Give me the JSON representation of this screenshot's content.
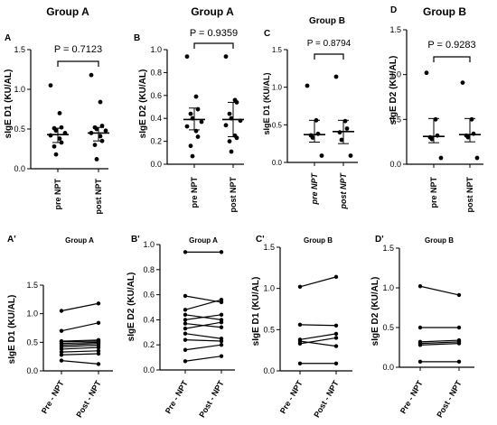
{
  "chart_data": [
    {
      "id": "A",
      "letter": "A",
      "type": "scatter",
      "title": "Group A",
      "xlabel": "",
      "ylabel": "sIgE D1 (KU/AL)",
      "ylim": [
        0,
        1.5
      ],
      "yticks": [
        0.0,
        0.5,
        1.0,
        1.5
      ],
      "tick_labels": [
        "0.0",
        "0.5",
        "1.0",
        "1.5"
      ],
      "categories": [
        "pre NPT",
        "post NPT"
      ],
      "pvalue": "P = 0.7123",
      "series": [
        {
          "values": [
            1.05,
            0.7,
            0.52,
            0.51,
            0.48,
            0.45,
            0.42,
            0.38,
            0.33,
            0.28,
            0.18
          ]
        },
        {
          "values": [
            1.18,
            0.84,
            0.54,
            0.52,
            0.5,
            0.48,
            0.45,
            0.41,
            0.35,
            0.3,
            0.12
          ]
        }
      ],
      "median": [
        0.43,
        0.45
      ],
      "iqr": [
        [
          0.33,
          0.51
        ],
        [
          0.35,
          0.52
        ]
      ]
    },
    {
      "id": "B",
      "letter": "B",
      "type": "scatter",
      "title": "Group A",
      "xlabel": "",
      "ylabel": "sIgE D2 (KU/AL)",
      "ylim": [
        0,
        1.0
      ],
      "yticks": [
        0.0,
        0.2,
        0.4,
        0.6,
        0.8,
        1.0
      ],
      "tick_labels": [
        "0.0",
        "0.2",
        "0.4",
        "0.6",
        "0.8",
        "1.0"
      ],
      "categories": [
        "pre NPT",
        "post NPT"
      ],
      "pvalue": "P = 0.9359",
      "series": [
        {
          "values": [
            0.94,
            0.59,
            0.48,
            0.44,
            0.4,
            0.37,
            0.33,
            0.29,
            0.24,
            0.16,
            0.07
          ]
        },
        {
          "values": [
            0.94,
            0.56,
            0.54,
            0.44,
            0.4,
            0.38,
            0.34,
            0.25,
            0.23,
            0.2,
            0.11
          ]
        }
      ],
      "median": [
        0.39,
        0.39
      ],
      "iqr": [
        [
          0.3,
          0.49
        ],
        [
          0.24,
          0.54
        ]
      ]
    },
    {
      "id": "C",
      "letter": "C",
      "type": "scatter",
      "title": "Group B",
      "xlabel": "",
      "ylabel": "sIgE D1 (KU/AL)",
      "ylim": [
        0,
        1.5
      ],
      "yticks": [
        0.0,
        0.5,
        1.0,
        1.5
      ],
      "tick_labels": [
        "0.0",
        "0.5",
        "1.0",
        "1.5"
      ],
      "categories": [
        "pre NPT",
        "post NPT"
      ],
      "pvalue": "P = 0.8794",
      "series": [
        {
          "values": [
            1.02,
            0.56,
            0.38,
            0.36,
            0.33,
            0.09
          ]
        },
        {
          "values": [
            1.14,
            0.55,
            0.45,
            0.4,
            0.3,
            0.09
          ]
        }
      ],
      "median": [
        0.37,
        0.41
      ],
      "iqr": [
        [
          0.27,
          0.56
        ],
        [
          0.25,
          0.56
        ]
      ]
    },
    {
      "id": "D",
      "letter": "D",
      "type": "scatter",
      "title": "Group B",
      "xlabel": "",
      "ylabel": "sIgE D2 (KU/AL)",
      "ylim": [
        0,
        1.5
      ],
      "yticks": [
        0.0,
        0.5,
        1.0,
        1.5
      ],
      "tick_labels": [
        "0.0",
        "0.5",
        "1.0",
        "1.5"
      ],
      "categories": [
        "pre NPT",
        "post NPT"
      ],
      "pvalue": "P = 0.9283",
      "series": [
        {
          "values": [
            1.02,
            0.5,
            0.32,
            0.3,
            0.28,
            0.07
          ]
        },
        {
          "values": [
            0.91,
            0.5,
            0.34,
            0.32,
            0.3,
            0.07
          ]
        }
      ],
      "median": [
        0.31,
        0.33
      ],
      "iqr": [
        [
          0.24,
          0.51
        ],
        [
          0.25,
          0.51
        ]
      ]
    },
    {
      "id": "A2",
      "letter": "A'",
      "type": "line",
      "title": "Group A",
      "xlabel": "",
      "ylabel": "sIgE D1 (KU/AL)",
      "ylim": [
        0,
        1.5
      ],
      "yticks": [
        0.0,
        0.5,
        1.0,
        1.5
      ],
      "tick_labels": [
        "0.0",
        "0.5",
        "1.0",
        "1.5"
      ],
      "categories": [
        "Pre - NPT",
        "Post - NPT"
      ],
      "pairs": [
        [
          1.05,
          1.18
        ],
        [
          0.7,
          0.84
        ],
        [
          0.52,
          0.54
        ],
        [
          0.51,
          0.52
        ],
        [
          0.48,
          0.5
        ],
        [
          0.45,
          0.48
        ],
        [
          0.42,
          0.45
        ],
        [
          0.38,
          0.41
        ],
        [
          0.33,
          0.35
        ],
        [
          0.28,
          0.3
        ],
        [
          0.18,
          0.12
        ]
      ]
    },
    {
      "id": "B2",
      "letter": "B'",
      "type": "line",
      "title": "Group A",
      "xlabel": "",
      "ylabel": "sIgE D2 (KU/AL)",
      "ylim": [
        0,
        1.0
      ],
      "yticks": [
        0.0,
        0.2,
        0.4,
        0.6,
        0.8,
        1.0
      ],
      "tick_labels": [
        "0.0",
        "0.2",
        "0.4",
        "0.6",
        "0.8",
        "1.0"
      ],
      "categories": [
        "Pre - NPT",
        "Post - NPT"
      ],
      "pairs": [
        [
          0.94,
          0.94
        ],
        [
          0.59,
          0.54
        ],
        [
          0.48,
          0.56
        ],
        [
          0.44,
          0.4
        ],
        [
          0.4,
          0.44
        ],
        [
          0.37,
          0.34
        ],
        [
          0.33,
          0.38
        ],
        [
          0.29,
          0.25
        ],
        [
          0.24,
          0.23
        ],
        [
          0.16,
          0.2
        ],
        [
          0.07,
          0.11
        ]
      ]
    },
    {
      "id": "C2",
      "letter": "C'",
      "type": "line",
      "title": "Group B",
      "xlabel": "",
      "ylabel": "sIgE D1 (KU/AL)",
      "ylim": [
        0,
        1.5
      ],
      "yticks": [
        0.0,
        0.5,
        1.0,
        1.5
      ],
      "tick_labels": [
        "0.0",
        "0.5",
        "1.0",
        "1.5"
      ],
      "categories": [
        "Pre - NPT",
        "Post - NPT"
      ],
      "pairs": [
        [
          1.02,
          1.14
        ],
        [
          0.56,
          0.55
        ],
        [
          0.38,
          0.45
        ],
        [
          0.36,
          0.3
        ],
        [
          0.33,
          0.4
        ],
        [
          0.09,
          0.09
        ]
      ]
    },
    {
      "id": "D2",
      "letter": "D'",
      "type": "line",
      "title": "Group B",
      "xlabel": "",
      "ylabel": "sIgE D2 (KU/AL)",
      "ylim": [
        0,
        1.5
      ],
      "yticks": [
        0.0,
        0.5,
        1.0,
        1.5
      ],
      "tick_labels": [
        "0.0",
        "0.5",
        "1.0",
        "1.5"
      ],
      "categories": [
        "Pre - NPT",
        "Post - NPT"
      ],
      "pairs": [
        [
          1.02,
          0.91
        ],
        [
          0.5,
          0.5
        ],
        [
          0.32,
          0.34
        ],
        [
          0.3,
          0.32
        ],
        [
          0.28,
          0.3
        ],
        [
          0.07,
          0.07
        ]
      ]
    }
  ]
}
